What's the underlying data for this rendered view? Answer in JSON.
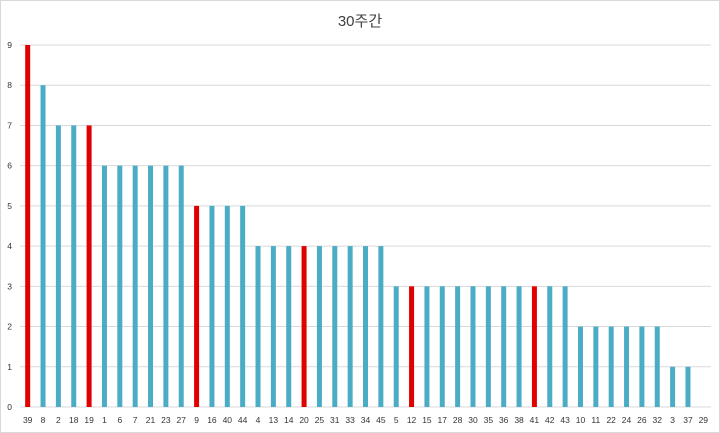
{
  "chart_data": {
    "type": "bar",
    "title": "30주간",
    "xlabel": "",
    "ylabel": "",
    "ylim": [
      0,
      9
    ],
    "yticks": [
      0,
      1,
      2,
      3,
      4,
      5,
      6,
      7,
      8,
      9
    ],
    "grid": true,
    "legend": "none",
    "categories": [
      "39",
      "8",
      "2",
      "18",
      "19",
      "1",
      "6",
      "7",
      "21",
      "23",
      "27",
      "9",
      "16",
      "40",
      "44",
      "4",
      "13",
      "14",
      "20",
      "25",
      "31",
      "33",
      "34",
      "45",
      "5",
      "12",
      "15",
      "17",
      "28",
      "30",
      "35",
      "36",
      "38",
      "41",
      "42",
      "43",
      "10",
      "11",
      "22",
      "24",
      "26",
      "32",
      "3",
      "37",
      "29"
    ],
    "values": [
      9,
      8,
      7,
      7,
      7,
      6,
      6,
      6,
      6,
      6,
      6,
      5,
      5,
      5,
      5,
      4,
      4,
      4,
      4,
      4,
      4,
      4,
      4,
      4,
      3,
      3,
      3,
      3,
      3,
      3,
      3,
      3,
      3,
      3,
      3,
      3,
      2,
      2,
      2,
      2,
      2,
      2,
      1,
      1,
      0
    ],
    "highlighted": [
      "39",
      "19",
      "9",
      "20",
      "12",
      "41"
    ],
    "colors": {
      "default": "#4bacc6",
      "highlight": "#e00000",
      "grid": "#d9d9d9"
    }
  }
}
